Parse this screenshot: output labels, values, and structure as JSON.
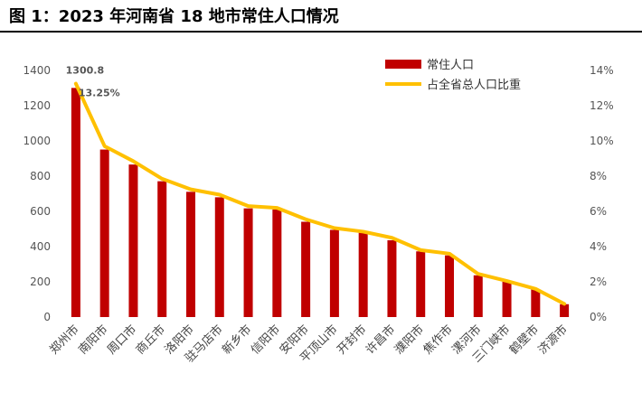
{
  "figure_title": "图 1：2023 年河南省 18 地市常住人口情况",
  "chart_data": {
    "type": "bar",
    "categories": [
      "郑州市",
      "南阳市",
      "周口市",
      "商丘市",
      "洛阳市",
      "驻马店市",
      "新乡市",
      "信阳市",
      "安阳市",
      "平顶山市",
      "开封市",
      "许昌市",
      "濮阳市",
      "焦作市",
      "漯河市",
      "三门峡市",
      "鹤壁市",
      "济源市"
    ],
    "series": [
      {
        "name": "常住人口",
        "type": "bar",
        "axis": "left",
        "color": "#c00000",
        "values": [
          1300.8,
          951,
          866,
          771,
          711,
          680,
          617,
          611,
          541,
          495,
          479,
          436,
          373,
          350,
          237,
          203,
          157,
          73
        ]
      },
      {
        "name": "占全省总人口比重",
        "type": "line",
        "axis": "right",
        "color": "#ffc000",
        "values": [
          13.25,
          9.7,
          8.85,
          7.85,
          7.25,
          6.95,
          6.3,
          6.2,
          5.55,
          5.05,
          4.85,
          4.5,
          3.8,
          3.6,
          2.45,
          2.05,
          1.6,
          0.75
        ]
      }
    ],
    "y_left": {
      "ylim": [
        0,
        1400
      ],
      "ticks": [
        "0",
        "200",
        "400",
        "600",
        "800",
        "1000",
        "1200",
        "1400"
      ]
    },
    "y_right": {
      "ylim": [
        0,
        14
      ],
      "ticks": [
        "0%",
        "2%",
        "4%",
        "6%",
        "8%",
        "10%",
        "12%",
        "14%"
      ]
    },
    "data_labels": [
      {
        "series": 0,
        "index": 0,
        "text": "1300.8"
      },
      {
        "series": 1,
        "index": 0,
        "text": "13.25%"
      }
    ],
    "legend": {
      "position": "top-right"
    },
    "grid": false
  }
}
